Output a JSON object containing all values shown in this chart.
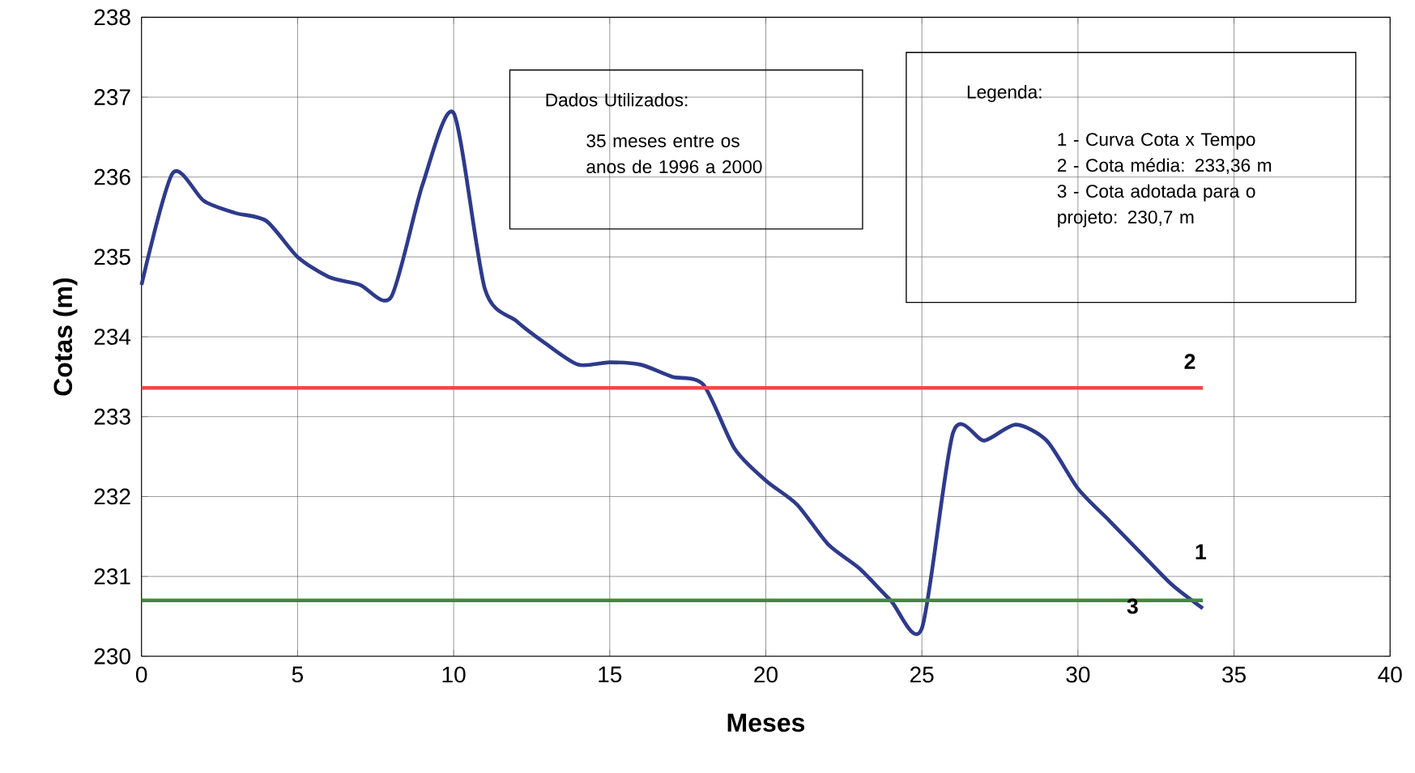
{
  "chart_data": {
    "type": "line",
    "xlabel": "Meses",
    "ylabel": "Cotas (m)",
    "xlim": [
      0,
      40
    ],
    "xticks": [
      0,
      5,
      10,
      15,
      20,
      25,
      30,
      35,
      40
    ],
    "ylim": [
      230,
      238
    ],
    "yticks": [
      230,
      231,
      232,
      233,
      234,
      235,
      236,
      237,
      238
    ],
    "grid": true,
    "marker": "none",
    "line_style": "solid",
    "series": [
      {
        "name": "1",
        "color": "#2e3a8c",
        "x": [
          0,
          1,
          2,
          3,
          4,
          5,
          6,
          7,
          8,
          9,
          10,
          11,
          12,
          13,
          14,
          15,
          16,
          17,
          18,
          19,
          20,
          21,
          22,
          23,
          24,
          25,
          26,
          27,
          28,
          29,
          30,
          31,
          32,
          33,
          34
        ],
        "values": [
          234.65,
          236.05,
          235.7,
          235.55,
          235.45,
          235.0,
          234.75,
          234.65,
          234.5,
          235.9,
          236.8,
          234.6,
          234.2,
          233.9,
          233.65,
          233.68,
          233.65,
          233.5,
          233.4,
          232.6,
          232.2,
          231.9,
          231.4,
          231.1,
          230.7,
          230.35,
          232.8,
          232.7,
          232.9,
          232.7,
          232.1,
          231.7,
          231.3,
          230.9,
          230.6
        ]
      },
      {
        "name": "2",
        "color": "#f04848",
        "x": [
          0,
          34
        ],
        "values": [
          233.36,
          233.36
        ]
      },
      {
        "name": "3",
        "color": "#3c8c3c",
        "x": [
          0,
          34
        ],
        "values": [
          230.7,
          230.7
        ]
      }
    ],
    "annotations": [
      "Dados Utilizados:",
      "35 meses entre os anos de 1996 a 2000",
      "Legenda:",
      "1 - Curva Cota x Tempo",
      "2 - Cota média: 233,36 m",
      "3 - Cota adotada para o projeto: 230,7 m"
    ]
  }
}
